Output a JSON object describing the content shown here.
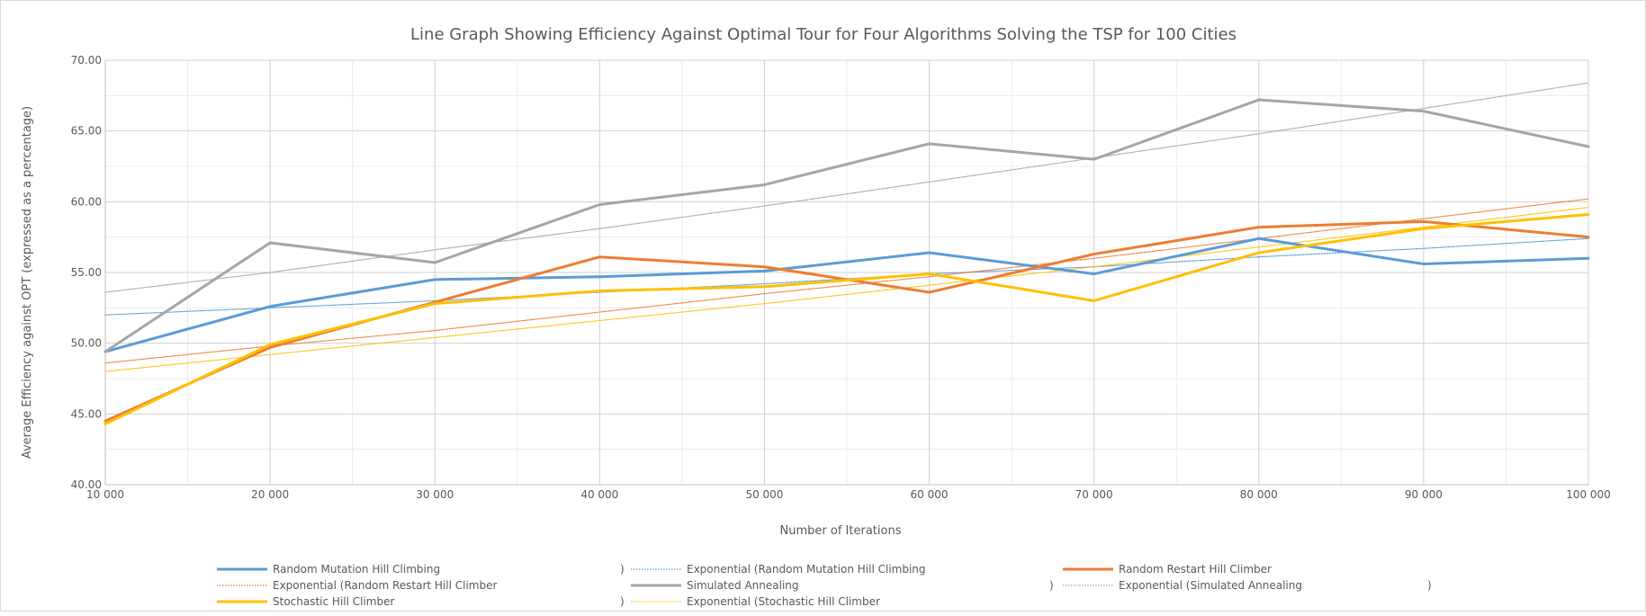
{
  "chart_data": {
    "type": "line",
    "title": "Line Graph Showing Efficiency Against Optimal Tour for Four Algorithms Solving the TSP for 100 Cities",
    "xlabel": "Number of Iterations",
    "ylabel": "Average Efficiency against OPT (expressed as a percentage)",
    "x": [
      10000,
      20000,
      30000,
      40000,
      50000,
      60000,
      70000,
      80000,
      90000,
      100000
    ],
    "x_tick_labels": [
      "10 000",
      "20 000",
      "30 000",
      "40 000",
      "50 000",
      "60 000",
      "70 000",
      "80 000",
      "90 000",
      "100 000"
    ],
    "y_ticks": [
      40,
      45,
      50,
      55,
      60,
      65,
      70
    ],
    "y_tick_labels": [
      "40.00",
      "45.00",
      "50.00",
      "55.00",
      "60.00",
      "65.00",
      "70.00"
    ],
    "ylim": [
      40,
      70
    ],
    "grid": true,
    "legend_position": "bottom",
    "series": [
      {
        "name": "Random Mutation Hill Climbing",
        "color": "#5b9bd5",
        "style": "solid",
        "values": [
          49.4,
          52.6,
          54.5,
          54.7,
          55.1,
          56.4,
          54.9,
          57.4,
          55.6,
          56.0
        ]
      },
      {
        "name": "Exponential (Random Mutation Hill Climbing",
        "legend_suffix": ")",
        "color": "#5b9bd5",
        "style": "dotted",
        "values": [
          52.0,
          52.5,
          53.0,
          53.6,
          54.2,
          54.9,
          55.4,
          56.1,
          56.7,
          57.4
        ]
      },
      {
        "name": "Random Restart Hill Climber",
        "color": "#ed7d31",
        "style": "solid",
        "values": [
          44.5,
          49.7,
          52.9,
          56.1,
          55.4,
          53.6,
          56.3,
          58.2,
          58.6,
          57.5
        ]
      },
      {
        "name": "Exponential (Random Restart Hill Climber",
        "legend_suffix": ")",
        "color": "#ed7d31",
        "style": "dotted",
        "values": [
          48.6,
          49.8,
          50.9,
          52.2,
          53.5,
          54.7,
          56.0,
          57.4,
          58.8,
          60.2
        ]
      },
      {
        "name": "Simulated Annealing",
        "color": "#a5a5a5",
        "style": "solid",
        "values": [
          49.4,
          57.1,
          55.7,
          59.8,
          61.2,
          64.1,
          63.0,
          67.2,
          66.4,
          63.9
        ]
      },
      {
        "name": "Exponential (Simulated Annealing",
        "legend_suffix": ")",
        "color": "#a5a5a5",
        "style": "dotted",
        "values": [
          53.6,
          55.0,
          56.6,
          58.1,
          59.7,
          61.4,
          63.1,
          64.8,
          66.6,
          68.4
        ]
      },
      {
        "name": "Stochastic Hill Climber",
        "color": "#ffc000",
        "style": "solid",
        "values": [
          44.3,
          49.9,
          52.8,
          53.7,
          54.0,
          54.9,
          53.0,
          56.4,
          58.1,
          59.1
        ]
      },
      {
        "name": "Exponential (Stochastic Hill Climber",
        "legend_suffix": ")",
        "color": "#ffc000",
        "style": "dotted",
        "values": [
          48.0,
          49.2,
          50.4,
          51.6,
          52.8,
          54.1,
          55.4,
          56.8,
          58.2,
          59.6
        ]
      }
    ]
  }
}
